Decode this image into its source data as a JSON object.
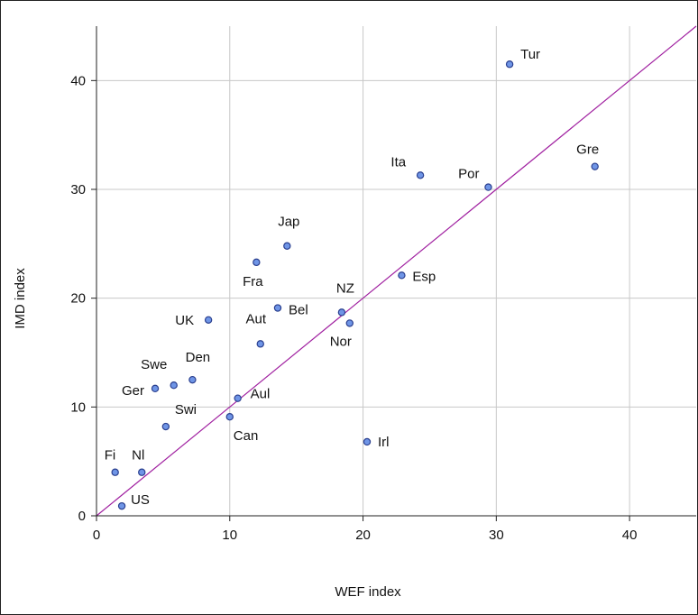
{
  "chart_data": {
    "type": "scatter",
    "xlabel": "WEF index",
    "ylabel": "IMD index",
    "xlim": [
      0,
      45
    ],
    "ylim": [
      0,
      45
    ],
    "x_ticks": [
      0,
      10,
      20,
      30,
      40
    ],
    "y_ticks": [
      0,
      10,
      20,
      30,
      40
    ],
    "grid": true,
    "reference_line": {
      "from": [
        0,
        0
      ],
      "to": [
        45,
        45
      ],
      "color": "#a020a0"
    },
    "point_color": "#6f95e6",
    "points": [
      {
        "label": "Tur",
        "x": 31.0,
        "y": 41.5
      },
      {
        "label": "Ita",
        "x": 24.3,
        "y": 31.3
      },
      {
        "label": "Por",
        "x": 29.4,
        "y": 30.2
      },
      {
        "label": "Gre",
        "x": 37.4,
        "y": 32.1
      },
      {
        "label": "Jap",
        "x": 14.3,
        "y": 24.8
      },
      {
        "label": "Fra",
        "x": 12.0,
        "y": 23.3
      },
      {
        "label": "Esp",
        "x": 22.9,
        "y": 22.1
      },
      {
        "label": "NZ",
        "x": 18.4,
        "y": 18.7
      },
      {
        "label": "Bel",
        "x": 13.6,
        "y": 19.1
      },
      {
        "label": "Nor",
        "x": 19.0,
        "y": 17.7
      },
      {
        "label": "UK",
        "x": 8.4,
        "y": 18.0
      },
      {
        "label": "Aut",
        "x": 12.3,
        "y": 15.8
      },
      {
        "label": "Swe",
        "x": 5.8,
        "y": 12.0
      },
      {
        "label": "Den",
        "x": 7.2,
        "y": 12.5
      },
      {
        "label": "Ger",
        "x": 4.4,
        "y": 11.7
      },
      {
        "label": "Aul",
        "x": 10.6,
        "y": 10.8
      },
      {
        "label": "Swi",
        "x": 5.2,
        "y": 8.2
      },
      {
        "label": "Can",
        "x": 10.0,
        "y": 9.1
      },
      {
        "label": "Irl",
        "x": 20.3,
        "y": 6.8
      },
      {
        "label": "Fi",
        "x": 1.4,
        "y": 4.0
      },
      {
        "label": "Nl",
        "x": 3.4,
        "y": 4.0
      },
      {
        "label": "US",
        "x": 1.9,
        "y": 0.9
      }
    ]
  }
}
